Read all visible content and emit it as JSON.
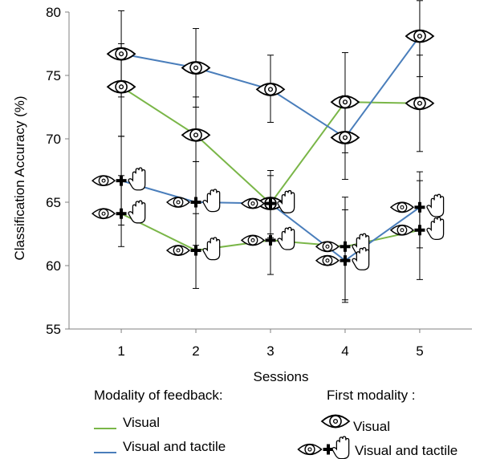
{
  "chart_data": {
    "type": "line",
    "xlabel": "Sessions",
    "ylabel": "Classification Accuracy (%)",
    "ylim": [
      55,
      80
    ],
    "xlim": [
      0.3,
      5.7
    ],
    "yticks": [
      55,
      60,
      65,
      70,
      75,
      80
    ],
    "categories": [
      "1",
      "2",
      "3",
      "4",
      "5"
    ],
    "grid": false,
    "colors": {
      "Visual": "#7ab648",
      "Visual and tactile": "#4a7ebb"
    },
    "series": [
      {
        "modality_of_feedback": "Visual",
        "first_modality": "Visual",
        "values": [
          74.1,
          70.3,
          64.9,
          72.9,
          72.8
        ],
        "err_high": [
          77.5,
          73.3,
          67.5,
          76.8,
          76.6
        ],
        "err_low": [
          70.2,
          68.2,
          62.2,
          68.9,
          69.0
        ]
      },
      {
        "modality_of_feedback": "Visual and tactile",
        "first_modality": "Visual",
        "values": [
          76.7,
          75.6,
          73.9,
          70.1,
          78.1
        ],
        "err_high": [
          80.1,
          78.7,
          76.6,
          73.4,
          80.9
        ],
        "err_low": [
          73.3,
          72.5,
          71.3,
          66.8,
          74.9
        ]
      },
      {
        "modality_of_feedback": "Visual",
        "first_modality": "Visual and tactile",
        "values": [
          64.1,
          61.2,
          62.0,
          61.5,
          62.8
        ],
        "err_high": [
          67.1,
          64.1,
          64.7,
          64.4,
          66.7
        ],
        "err_low": [
          61.5,
          58.2,
          59.3,
          57.3,
          58.9
        ]
      },
      {
        "modality_of_feedback": "Visual and tactile",
        "first_modality": "Visual and tactile",
        "values": [
          66.7,
          65.0,
          64.9,
          60.4,
          64.6
        ],
        "err_high": [
          70.2,
          68.2,
          67.1,
          65.4,
          67.4
        ],
        "err_low": [
          63.2,
          61.6,
          62.5,
          57.1,
          61.4
        ]
      }
    ]
  },
  "legend": {
    "feedback_heading": "Modality of feedback:",
    "feedback_items": [
      {
        "label": "Visual",
        "color": "#7ab648"
      },
      {
        "label": "Visual and tactile",
        "color": "#4a7ebb"
      }
    ],
    "first_heading": "First modality :",
    "first_items": [
      {
        "label": "Visual",
        "icon": "eye-icon"
      },
      {
        "label": "Visual and tactile",
        "icon": "eye-plus-hand-icon"
      }
    ]
  }
}
